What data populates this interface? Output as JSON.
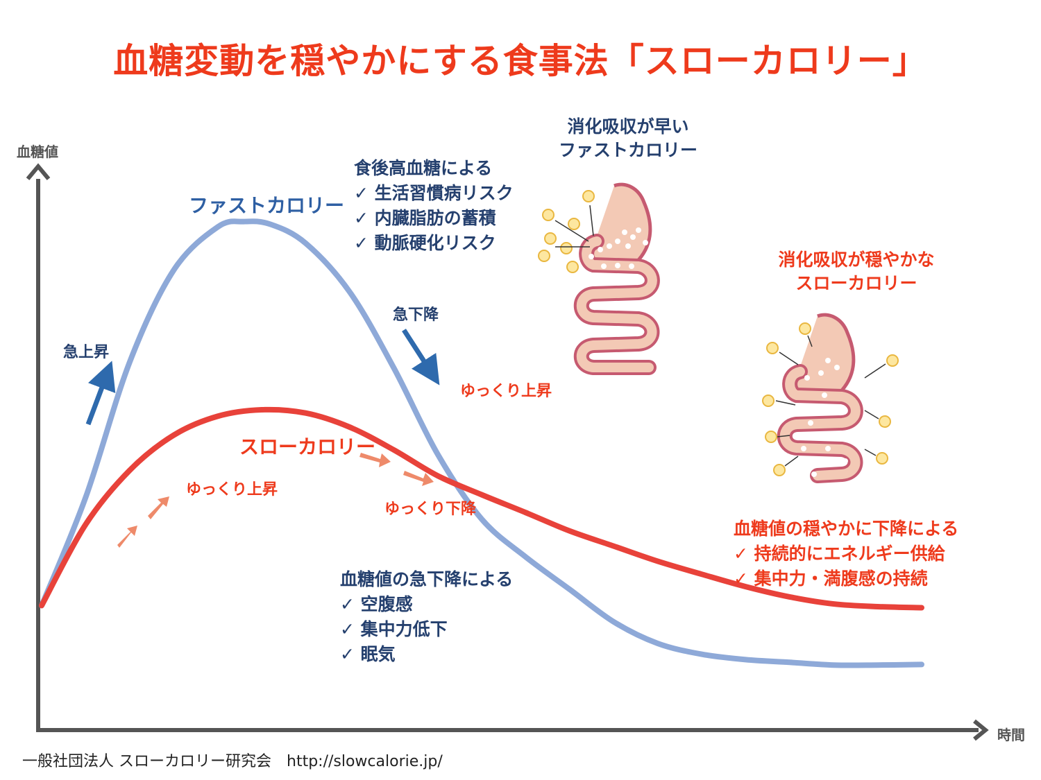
{
  "title": "血糖変動を穏やかにする食事法「スローカロリー」",
  "footer": "一般社団法人 スローカロリー研究会　http://slowcalorie.jp/",
  "colors": {
    "title": "#ee3a1c",
    "fast": "#8ea9d8",
    "slow": "#e8423a",
    "arrow_fast": "#2e6aad",
    "arrow_slow": "#ee8a6a",
    "axis": "#555555"
  },
  "chart_data": {
    "type": "line",
    "xlabel": "時間",
    "ylabel": "血糖値",
    "xlim": [
      0,
      100
    ],
    "ylim": [
      0,
      100
    ],
    "grid": false,
    "series": [
      {
        "name": "ファストカロリー",
        "x": [
          0,
          5,
          10,
          15,
          20,
          23,
          26,
          30,
          35,
          40,
          45,
          50,
          55,
          60,
          65,
          70,
          75,
          80,
          85,
          90,
          95,
          100
        ],
        "values": [
          17,
          37,
          62,
          79,
          87,
          88,
          87.5,
          84,
          75,
          61,
          45,
          33,
          26,
          20,
          14,
          10,
          8,
          7,
          6.5,
          6,
          6,
          6.1
        ]
      },
      {
        "name": "スローカロリー",
        "x": [
          0,
          5,
          10,
          15,
          20,
          25,
          30,
          35,
          40,
          45,
          50,
          55,
          60,
          65,
          70,
          75,
          80,
          85,
          90,
          95,
          100
        ],
        "values": [
          17,
          32,
          42,
          48.5,
          52,
          53.2,
          52.6,
          50,
          45.8,
          41,
          37.5,
          34.2,
          30.8,
          28,
          25.2,
          22.8,
          20.5,
          18.6,
          17.3,
          16.8,
          16.6
        ]
      }
    ]
  },
  "labels": {
    "fast_name": "ファストカロリー",
    "slow_name": "スローカロリー",
    "rapid_rise": "急上昇",
    "rapid_fall": "急下降",
    "slow_rise_1": "ゆっくり上昇",
    "slow_rise_2": "ゆっくり上昇",
    "slow_fall": "ゆっくり下降"
  },
  "fast_digest": {
    "line1": "消化吸収が早い",
    "line2": "ファストカロリー"
  },
  "slow_digest": {
    "line1": "消化吸収が穏やかな",
    "line2": "スローカロリー"
  },
  "after_meal": {
    "heading": "食後高血糖による",
    "items": [
      "✓ 生活習慣病リスク",
      "✓ 内臓脂肪の蓄積",
      "✓ 動脈硬化リスク"
    ]
  },
  "sudden_drop": {
    "heading": "血糖値の急下降による",
    "items": [
      "✓ 空腹感",
      "✓ 集中力低下",
      "✓ 眠気"
    ]
  },
  "gentle_drop": {
    "heading": "血糖値の穏やかに下降による",
    "items": [
      "✓ 持続的にエネルギー供給",
      "✓ 集中力・満腹感の持続"
    ]
  }
}
